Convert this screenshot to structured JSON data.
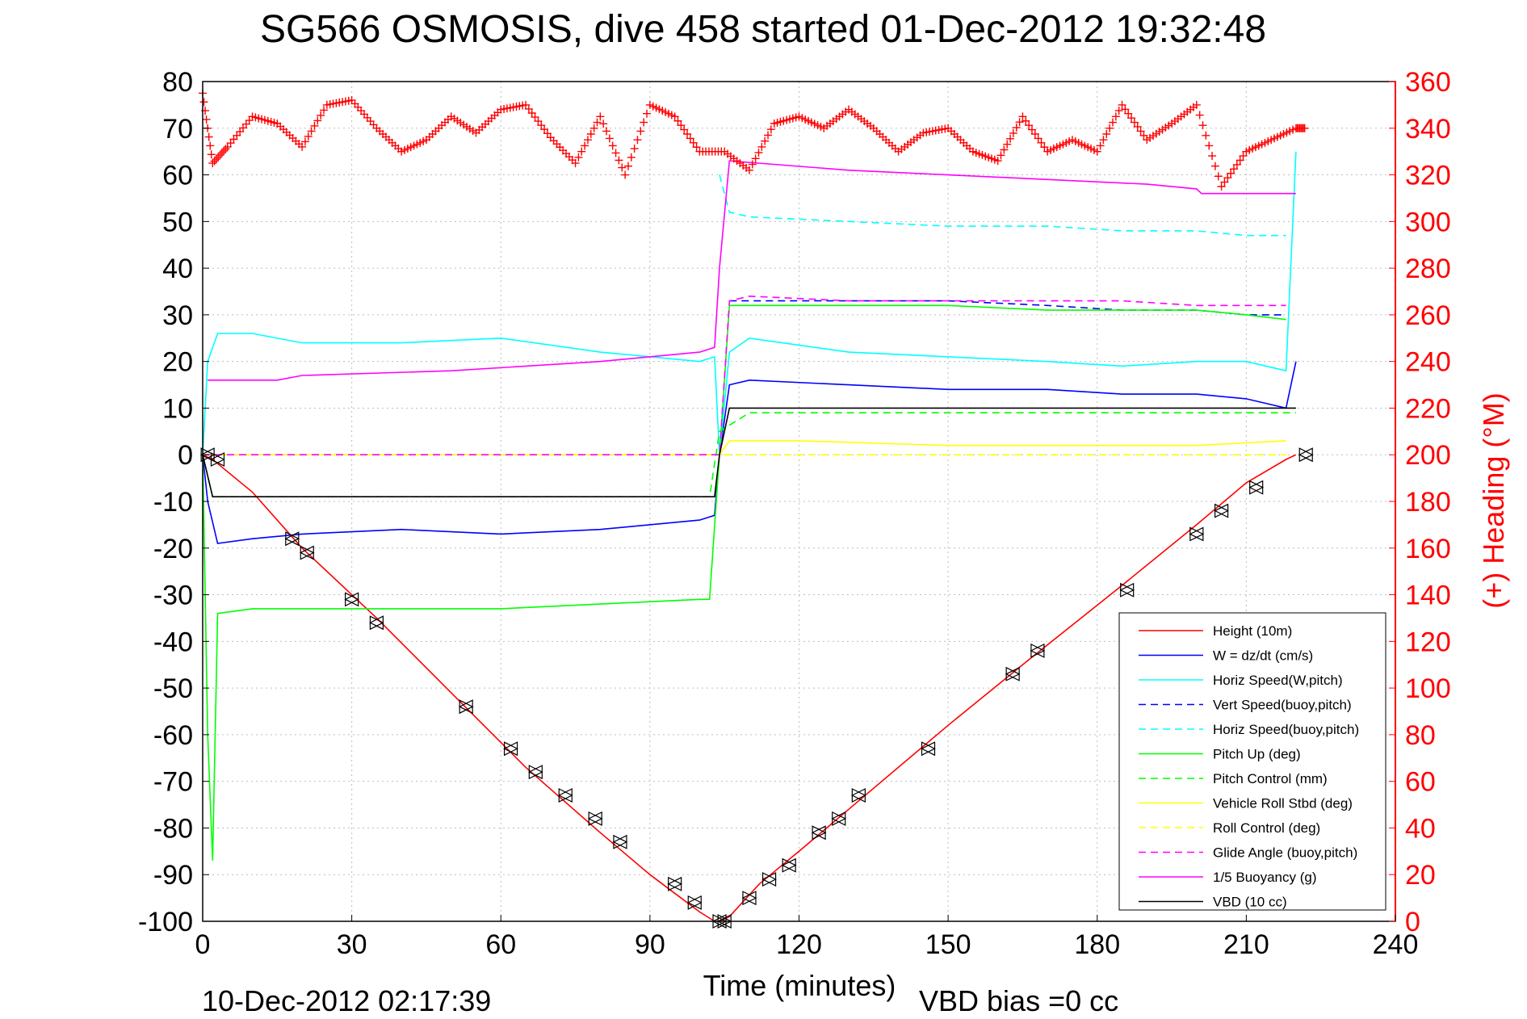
{
  "title": "SG566 OSMOSIS, dive 458 started 01-Dec-2012 19:32:48",
  "footer_date": "10-Dec-2012 02:17:39",
  "footer_vbd": "VBD bias =0 cc",
  "colors": {
    "height": "#ff0000",
    "w": "#0000ff",
    "horiz": "#00ffff",
    "pitch": "#00ff00",
    "roll": "#ffff00",
    "glide": "#ff00ff",
    "vbd": "#000000"
  },
  "chart_data": {
    "type": "line",
    "xlabel": "Time (minutes)",
    "ylabel_right": "(+) Heading (°M)",
    "xlim": [
      0,
      240
    ],
    "ylim": [
      -100,
      80
    ],
    "ylim_right": [
      0,
      360
    ],
    "xticks": [
      "0",
      "30",
      "60",
      "90",
      "120",
      "150",
      "180",
      "210",
      "240"
    ],
    "yticks": [
      "80",
      "70",
      "60",
      "50",
      "40",
      "30",
      "20",
      "10",
      "0",
      "-10",
      "-20",
      "-30",
      "-40",
      "-50",
      "-60",
      "-70",
      "-80",
      "-90",
      "-100"
    ],
    "yticks_right": [
      "360",
      "340",
      "320",
      "300",
      "280",
      "260",
      "240",
      "220",
      "200",
      "180",
      "160",
      "140",
      "120",
      "100",
      "80",
      "60",
      "40",
      "20",
      "0"
    ],
    "grid": true,
    "legend_position": "bottom-right",
    "series": [
      {
        "name": "Height (10m)",
        "color": "#ff0000",
        "style": "solid",
        "x": [
          0,
          2,
          10,
          20,
          35,
          50,
          65,
          80,
          90,
          95,
          100,
          103,
          104,
          106,
          112,
          120,
          130,
          150,
          165,
          185,
          200,
          210,
          218,
          220
        ],
        "y": [
          0,
          -1,
          -8,
          -20,
          -35,
          -51,
          -67,
          -81,
          -90,
          -94,
          -98,
          -100,
          -100,
          -99,
          -92,
          -85,
          -76,
          -58,
          -45,
          -28,
          -15,
          -6,
          -1,
          0
        ]
      },
      {
        "name": "W = dz/dt (cm/s)",
        "color": "#0000ff",
        "style": "solid",
        "x": [
          0,
          1,
          3,
          10,
          20,
          40,
          60,
          80,
          100,
          103,
          104,
          106,
          110,
          130,
          150,
          170,
          185,
          200,
          210,
          218,
          220
        ],
        "y": [
          0,
          -10,
          -19,
          -18,
          -17,
          -16,
          -17,
          -16,
          -14,
          -13,
          0,
          15,
          16,
          15,
          14,
          14,
          13,
          13,
          12,
          10,
          20
        ]
      },
      {
        "name": "Horiz Speed(W,pitch)",
        "color": "#00ffff",
        "style": "solid",
        "x": [
          0,
          1,
          3,
          10,
          20,
          40,
          60,
          80,
          100,
          103,
          104,
          106,
          110,
          130,
          150,
          170,
          185,
          200,
          210,
          218,
          220
        ],
        "y": [
          0,
          20,
          26,
          26,
          24,
          24,
          25,
          22,
          20,
          21,
          0,
          22,
          25,
          22,
          21,
          20,
          19,
          20,
          20,
          18,
          65
        ]
      },
      {
        "name": "Vert Speed(buoy,pitch)",
        "color": "#0000ff",
        "style": "dashed",
        "x": [
          106,
          110,
          130,
          150,
          170,
          185,
          200,
          210,
          218
        ],
        "y": [
          33,
          33,
          33,
          33,
          32,
          31,
          31,
          30,
          30
        ]
      },
      {
        "name": "Horiz Speed(buoy,pitch)",
        "color": "#00ffff",
        "style": "dashed",
        "x": [
          104,
          106,
          110,
          130,
          150,
          170,
          185,
          200,
          210,
          218
        ],
        "y": [
          60,
          52,
          51,
          50,
          49,
          49,
          48,
          48,
          47,
          47
        ]
      },
      {
        "name": "Pitch Up (deg)",
        "color": "#00ff00",
        "style": "solid",
        "x": [
          0,
          1,
          2,
          3,
          10,
          40,
          60,
          80,
          100,
          102,
          104,
          106,
          110,
          130,
          150,
          170,
          185,
          200,
          210,
          218
        ],
        "y": [
          0,
          -60,
          -87,
          -34,
          -33,
          -33,
          -33,
          -32,
          -31,
          -31,
          0,
          32,
          32,
          32,
          32,
          31,
          31,
          31,
          30,
          29
        ]
      },
      {
        "name": "Pitch Control (mm)",
        "color": "#00ff00",
        "style": "dashed",
        "x": [
          0,
          2,
          50,
          102,
          104,
          110,
          150,
          200,
          220
        ],
        "y": [
          0,
          -9,
          -9,
          -9,
          5,
          9,
          9,
          9,
          9
        ]
      },
      {
        "name": "Vehicle Roll Stbd (deg)",
        "color": "#ffff00",
        "style": "solid",
        "x": [
          0,
          3,
          18,
          20,
          40,
          60,
          80,
          100,
          104,
          106,
          120,
          150,
          180,
          200,
          218
        ],
        "y": [
          0,
          0,
          0,
          0,
          0,
          0,
          0,
          0,
          0,
          3,
          3,
          2,
          2,
          2,
          3
        ]
      },
      {
        "name": "Roll Control (deg)",
        "color": "#ffff00",
        "style": "dashed",
        "x": [
          0,
          104,
          106,
          218
        ],
        "y": [
          0,
          0,
          0,
          0
        ]
      },
      {
        "name": "Glide Angle (buoy,pitch)",
        "color": "#ff00ff",
        "style": "dashed",
        "x": [
          0,
          104,
          106,
          110,
          130,
          150,
          170,
          185,
          200,
          210,
          218
        ],
        "y": [
          0,
          0,
          33,
          34,
          33,
          33,
          33,
          33,
          32,
          32,
          32
        ]
      },
      {
        "name": "1/5 Buoyancy (g)",
        "color": "#ff00ff",
        "style": "solid",
        "x": [
          1,
          15,
          20,
          50,
          80,
          100,
          103,
          104,
          106,
          130,
          150,
          170,
          190,
          200,
          201,
          210,
          220
        ],
        "y": [
          16,
          16,
          17,
          18,
          20,
          22,
          23,
          40,
          63,
          61,
          60,
          59,
          58,
          57,
          56,
          56,
          56
        ]
      },
      {
        "name": "VBD (10 cc)",
        "color": "#000000",
        "style": "solid",
        "x": [
          0,
          2,
          10,
          50,
          100,
          103,
          104,
          106,
          150,
          200,
          220
        ],
        "y": [
          0,
          -9,
          -9,
          -9,
          -9,
          -9,
          0,
          10,
          10,
          10,
          10
        ]
      }
    ],
    "heading": {
      "name": "Heading",
      "color": "#ff0000",
      "marker": "+",
      "axis": "right",
      "x": [
        0,
        2,
        5,
        10,
        15,
        20,
        25,
        30,
        35,
        40,
        45,
        50,
        55,
        60,
        65,
        70,
        75,
        80,
        85,
        90,
        95,
        100,
        105,
        110,
        115,
        120,
        125,
        130,
        135,
        140,
        145,
        150,
        155,
        160,
        165,
        170,
        175,
        180,
        185,
        190,
        195,
        200,
        205,
        210,
        215,
        220
      ],
      "y": [
        355,
        325,
        332,
        345,
        342,
        332,
        350,
        352,
        340,
        330,
        335,
        345,
        338,
        348,
        350,
        336,
        325,
        345,
        320,
        350,
        345,
        330,
        330,
        322,
        342,
        345,
        340,
        348,
        340,
        330,
        338,
        340,
        330,
        326,
        345,
        330,
        335,
        330,
        350,
        335,
        342,
        350,
        315,
        330,
        335,
        340
      ]
    },
    "markers": {
      "name": "Height markers",
      "symbol": "triangle",
      "x": [
        1,
        3,
        18,
        21,
        30,
        35,
        53,
        62,
        67,
        73,
        79,
        84,
        95,
        99,
        104,
        105,
        110,
        114,
        118,
        124,
        128,
        132,
        146,
        163,
        168,
        186,
        200,
        205,
        212,
        222
      ],
      "y": [
        0,
        -1,
        -18,
        -21,
        -31,
        -36,
        -54,
        -63,
        -68,
        -73,
        -78,
        -83,
        -92,
        -96,
        -100,
        -100,
        -95,
        -91,
        -88,
        -81,
        -78,
        -73,
        -63,
        -47,
        -42,
        -29,
        -17,
        -12,
        -7,
        0
      ]
    }
  }
}
